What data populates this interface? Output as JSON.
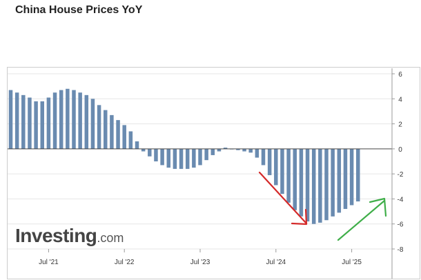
{
  "chart_data": {
    "type": "bar",
    "title": "China House Prices YoY",
    "xlabel": "",
    "ylabel": "",
    "ylim": [
      -8,
      6
    ],
    "yticks": [
      "6",
      "4",
      "2",
      "0",
      "-2",
      "-4",
      "-6",
      "-8"
    ],
    "x_tick_labels": [
      "Jul '21",
      "Jul '22",
      "Jul '23",
      "Jul '24",
      "Jul '25"
    ],
    "bar_color": "#6a8bb0",
    "grid": "horizontal gridlines",
    "y_axis_position": "right",
    "categories": [
      "Jan 2021",
      "Feb 2021",
      "Mar 2021",
      "Apr 2021",
      "May 2021",
      "Jun 2021",
      "Jul 2021",
      "Aug 2021",
      "Sep 2021",
      "Oct 2021",
      "Nov 2021",
      "Dec 2021",
      "Jan 2022",
      "Feb 2022",
      "Mar 2022",
      "Apr 2022",
      "May 2022",
      "Jun 2022",
      "Jul 2022",
      "Aug 2022",
      "Sep 2022",
      "Oct 2022",
      "Nov 2022",
      "Dec 2022",
      "Jan 2023",
      "Feb 2023",
      "Mar 2023",
      "Apr 2023",
      "May 2023",
      "Jun 2023",
      "Jul 2023",
      "Aug 2023",
      "Sep 2023",
      "Oct 2023",
      "Nov 2023",
      "Dec 2023",
      "Jan 2024",
      "Feb 2024",
      "Mar 2024",
      "Apr 2024",
      "May 2024",
      "Jun 2024",
      "Jul 2024",
      "Aug 2024",
      "Sep 2024",
      "Oct 2024",
      "Nov 2024",
      "Dec 2024",
      "Jan 2025",
      "Feb 2025",
      "Mar 2025",
      "Apr 2025",
      "May 2025",
      "Jun 2025",
      "Jul 2025",
      "Aug 2025"
    ],
    "values": [
      4.7,
      4.5,
      4.3,
      4.1,
      3.8,
      3.8,
      4.1,
      4.5,
      4.7,
      4.8,
      4.7,
      4.5,
      4.3,
      4.0,
      3.5,
      3.1,
      2.7,
      2.3,
      1.9,
      1.4,
      0.6,
      -0.2,
      -0.6,
      -1.0,
      -1.3,
      -1.5,
      -1.6,
      -1.6,
      -1.6,
      -1.5,
      -1.3,
      -0.9,
      -0.5,
      -0.2,
      0.1,
      0.0,
      -0.1,
      -0.2,
      -0.3,
      -0.7,
      -1.3,
      -2.1,
      -2.9,
      -3.6,
      -4.3,
      -4.9,
      -5.4,
      -5.8,
      -6.0,
      -5.9,
      -5.7,
      -5.4,
      -5.1,
      -4.8,
      -4.5,
      -4.2
    ],
    "annotations": [
      {
        "type": "arrow",
        "color": "#d42a2a",
        "direction": "down-right"
      },
      {
        "type": "arrow",
        "color": "#3fae49",
        "direction": "up-right"
      }
    ]
  },
  "branding": {
    "logo_brand": "Investing",
    "logo_domain": ".com"
  }
}
